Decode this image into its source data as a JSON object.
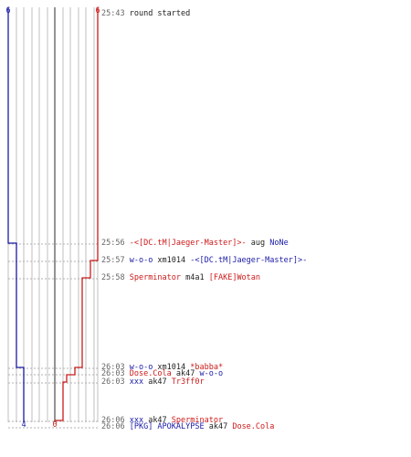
{
  "teams": {
    "blue": {
      "color": "#1a1aa6",
      "start_score": "6",
      "end_score": "4"
    },
    "red": {
      "color": "#cc1a1a",
      "start_score": "6",
      "end_score": "0"
    }
  },
  "colors": {
    "time": "#666666",
    "neutral": "#222222",
    "grid": "#bfbfbf",
    "center": "#666666"
  },
  "events": [
    {
      "time": "25:43",
      "parts": [
        {
          "text": "round started",
          "role": "neutral"
        }
      ]
    },
    {
      "time": "25:56",
      "parts": [
        {
          "text": "-<[DC.tM|Jaeger-Master]>-",
          "role": "red"
        },
        {
          "text": " aug ",
          "role": "neutral"
        },
        {
          "text": "NoNe",
          "role": "blue"
        }
      ]
    },
    {
      "time": "25:57",
      "parts": [
        {
          "text": "w-o-o",
          "role": "blue"
        },
        {
          "text": " xm1014 ",
          "role": "neutral"
        },
        {
          "text": "-<[DC.tM|Jaeger-Master]>-",
          "role": "blue"
        }
      ]
    },
    {
      "time": "25:58",
      "parts": [
        {
          "text": "Sperminator",
          "role": "red"
        },
        {
          "text": " m4a1 ",
          "role": "neutral"
        },
        {
          "text": "[FAKE]Wotan",
          "role": "red"
        }
      ]
    },
    {
      "time": "26:03",
      "parts": [
        {
          "text": "w-o-o",
          "role": "blue"
        },
        {
          "text": " xm1014 ",
          "role": "neutral"
        },
        {
          "text": "*babba*",
          "role": "red"
        }
      ]
    },
    {
      "time": "26:03",
      "parts": [
        {
          "text": "Dose.Cola",
          "role": "red"
        },
        {
          "text": " ak47 ",
          "role": "neutral"
        },
        {
          "text": "w-o-o",
          "role": "blue"
        }
      ]
    },
    {
      "time": "26:03",
      "parts": [
        {
          "text": "xxx",
          "role": "blue"
        },
        {
          "text": " ak47 ",
          "role": "neutral"
        },
        {
          "text": "Tr3ff0r",
          "role": "red"
        }
      ]
    },
    {
      "time": "26:06",
      "parts": [
        {
          "text": "xxx",
          "role": "blue"
        },
        {
          "text": " ak47 ",
          "role": "neutral"
        },
        {
          "text": "Sperminator",
          "role": "red"
        }
      ]
    },
    {
      "time": "26:06",
      "parts": [
        {
          "text": "[PKG] APOKALYPSE",
          "role": "blue"
        },
        {
          "text": " ak47 ",
          "role": "neutral"
        },
        {
          "text": "Dose.Cola",
          "role": "red"
        }
      ]
    }
  ]
}
